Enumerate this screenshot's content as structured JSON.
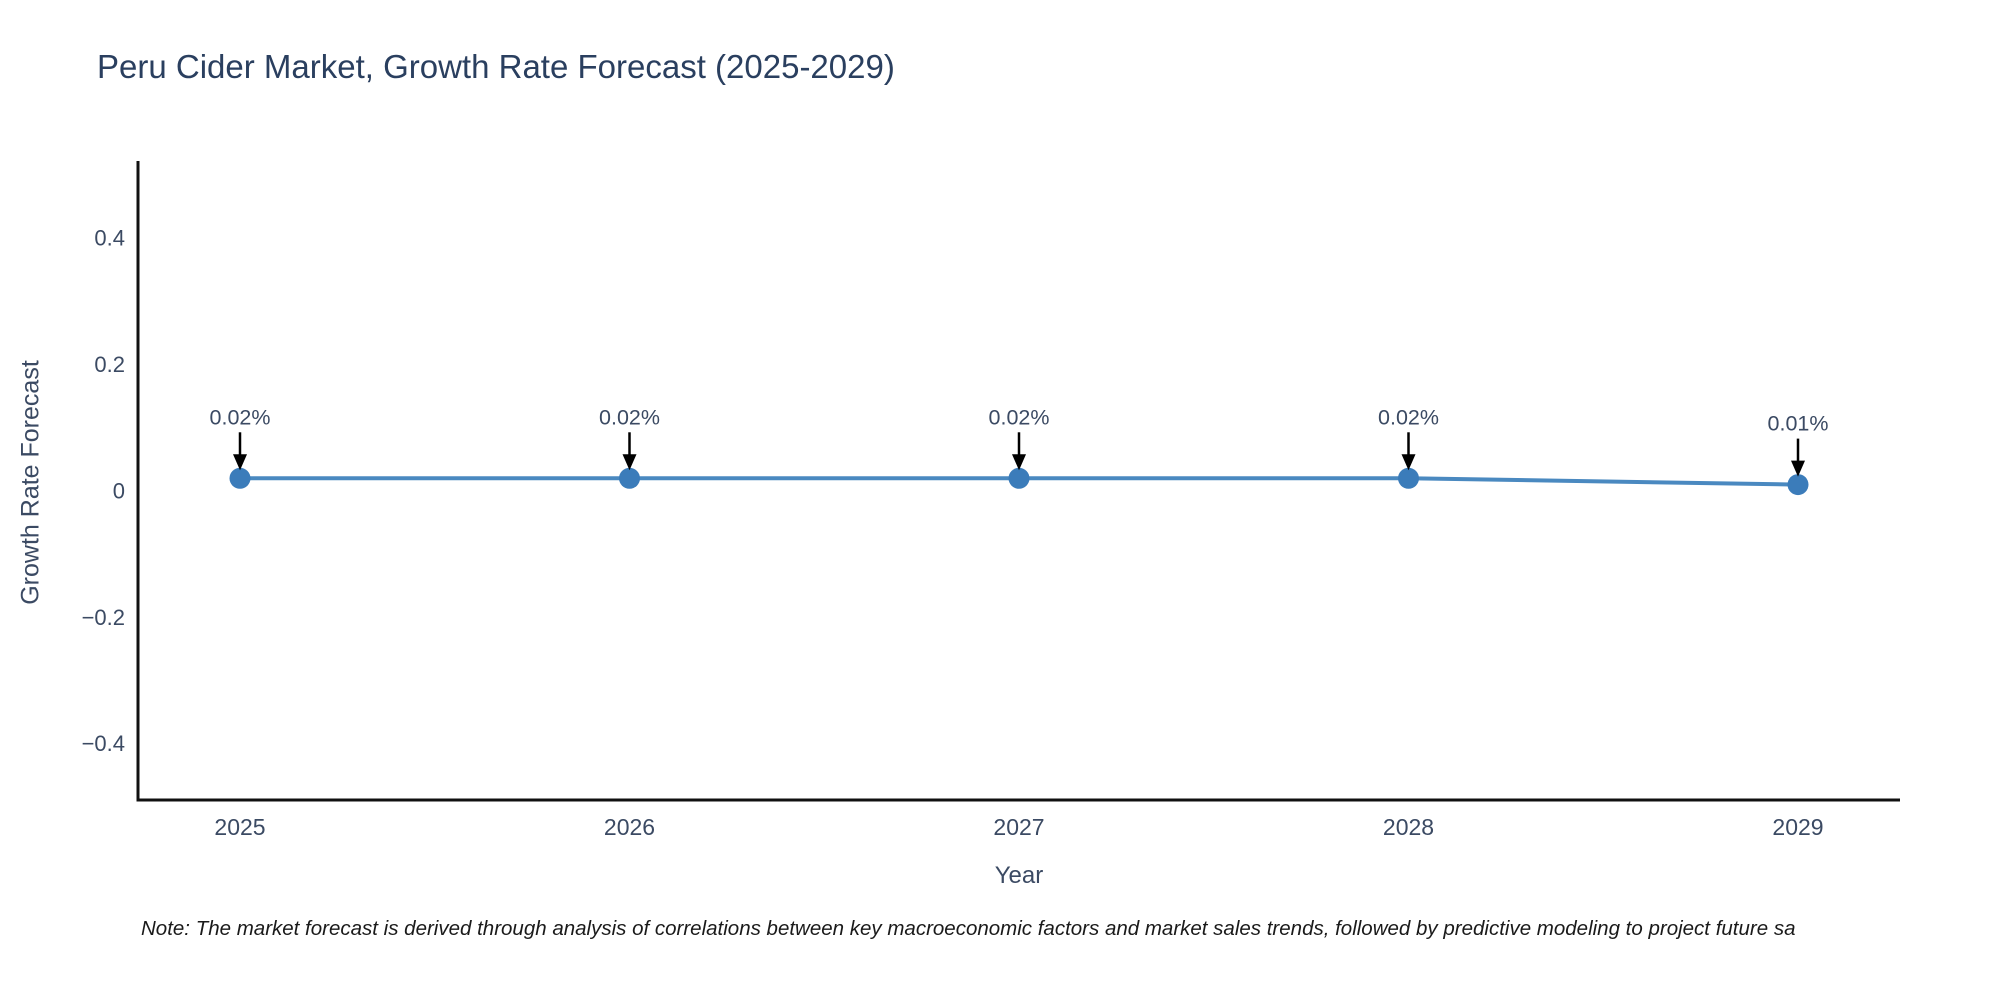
{
  "chart": {
    "title": "Peru Cider Market, Growth Rate Forecast (2025-2029)",
    "xlabel": "Year",
    "ylabel": "Growth Rate Forecast",
    "note": "Note: The market forecast is derived through analysis of correlations between key macroeconomic factors and market sales trends, followed by predictive modeling to project future sa"
  },
  "chart_data": {
    "type": "line",
    "title": "Peru Cider Market, Growth Rate Forecast (2025-2029)",
    "xlabel": "Year",
    "ylabel": "Growth Rate Forecast",
    "x": [
      2025,
      2026,
      2027,
      2028,
      2029
    ],
    "values": [
      0.02,
      0.02,
      0.02,
      0.02,
      0.01
    ],
    "point_labels": [
      "0.02%",
      "0.02%",
      "0.02%",
      "0.02%",
      "0.01%"
    ],
    "yticks": [
      0.4,
      0.2,
      0,
      -0.2,
      -0.4
    ],
    "ytick_labels": [
      "0.4",
      "0.2",
      "0",
      "−0.2",
      "−0.4"
    ],
    "xtick_labels": [
      "2025",
      "2026",
      "2027",
      "2028",
      "2029"
    ],
    "ylim": [
      -0.489,
      0.522
    ],
    "grid": false,
    "legend": false,
    "colors": {
      "line": "#4a89c0",
      "marker": "#3b7cba",
      "axis": "#111111",
      "title_text": "#2a3f5f",
      "tick_text": "#3b4a63",
      "annotation_text": "#3b4a63",
      "arrow": "#000000",
      "background": "#ffffff"
    }
  }
}
